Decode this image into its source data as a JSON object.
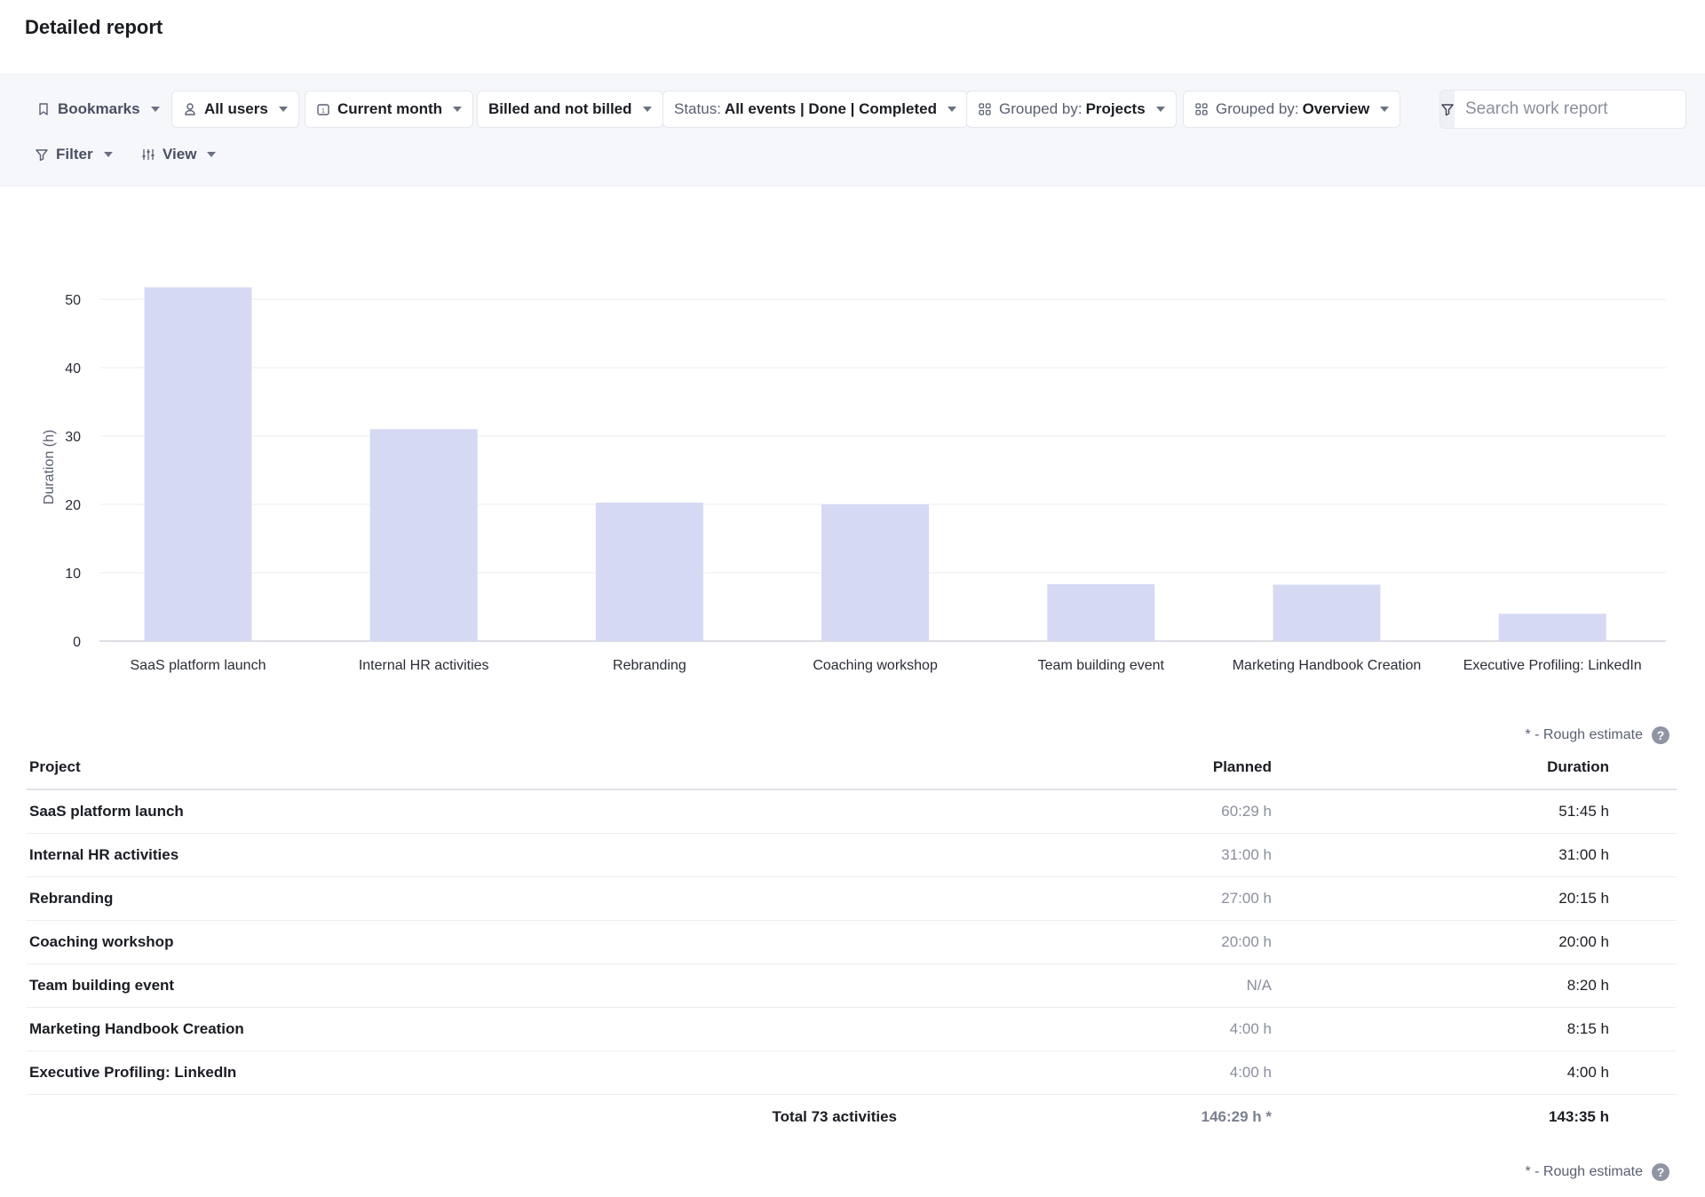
{
  "page": {
    "title": "Detailed report"
  },
  "toolbar": {
    "bookmarks": {
      "label": "Bookmarks",
      "icon": "bookmark-icon"
    },
    "users": {
      "label": "All users",
      "icon": "user-icon"
    },
    "period": {
      "label": "Current month",
      "icon": "calendar-icon"
    },
    "billing": {
      "label": "Billed and not billed"
    },
    "status": {
      "prefix": "Status:",
      "value": "All events | Done | Completed"
    },
    "group1": {
      "prefix": "Grouped by:",
      "value": "Projects",
      "icon": "grid-icon"
    },
    "group2": {
      "prefix": "Grouped by:",
      "value": "Overview",
      "icon": "grid-icon"
    },
    "filter": {
      "label": "Filter",
      "icon": "filter-icon"
    },
    "view": {
      "label": "View",
      "icon": "sliders-icon"
    },
    "search": {
      "placeholder": "Search work report",
      "value": ""
    }
  },
  "chart_data": {
    "type": "bar",
    "title": "",
    "xlabel": "",
    "ylabel": "Duration (h)",
    "categories": [
      "SaaS platform launch",
      "Internal HR activities",
      "Rebranding",
      "Coaching workshop",
      "Team building event",
      "Marketing Handbook Creation",
      "Executive Profiling: LinkedIn"
    ],
    "values": [
      51.75,
      31.0,
      20.25,
      20.0,
      8.33,
      8.25,
      4.0
    ],
    "yticks": [
      "0",
      "10",
      "20",
      "30",
      "40",
      "50"
    ],
    "ylim": [
      0,
      50
    ],
    "grid": true,
    "colors": {
      "bar": "#d5d9f3",
      "grid": "#eceef3",
      "axis": "#d0d3db",
      "text": "#2a2d36"
    }
  },
  "notes": {
    "rough_estimate": "* - Rough estimate",
    "help": "?"
  },
  "table": {
    "columns": {
      "project": "Project",
      "planned": "Planned",
      "duration": "Duration"
    },
    "rows": [
      {
        "project": "SaaS platform launch",
        "planned": "60:29 h",
        "duration": "51:45 h"
      },
      {
        "project": "Internal HR activities",
        "planned": "31:00 h",
        "duration": "31:00 h"
      },
      {
        "project": "Rebranding",
        "planned": "27:00 h",
        "duration": "20:15 h"
      },
      {
        "project": "Coaching workshop",
        "planned": "20:00 h",
        "duration": "20:00 h"
      },
      {
        "project": "Team building event",
        "planned": "N/A",
        "duration": "8:20 h"
      },
      {
        "project": "Marketing Handbook Creation",
        "planned": "4:00 h",
        "duration": "8:15 h"
      },
      {
        "project": "Executive Profiling: LinkedIn",
        "planned": "4:00 h",
        "duration": "4:00 h"
      }
    ],
    "total": {
      "label": "Total 73 activities",
      "planned": "146:29 h *",
      "duration": "143:35 h"
    }
  }
}
